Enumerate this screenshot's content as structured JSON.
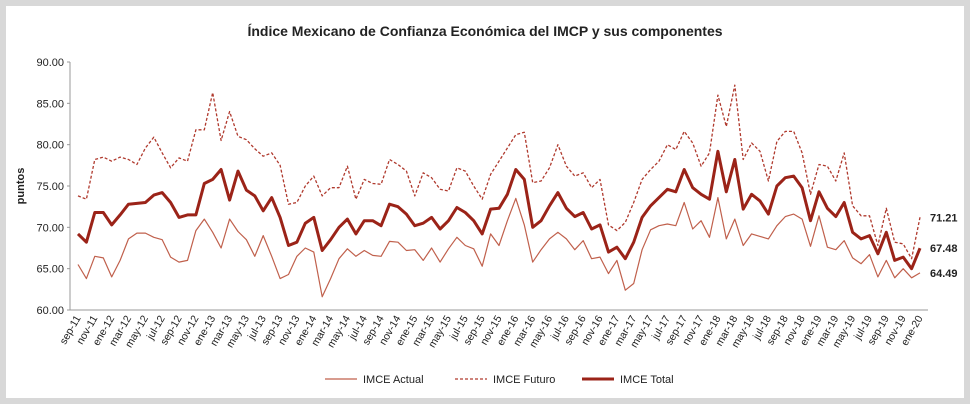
{
  "chart_data": {
    "type": "line",
    "title": "Índice Mexicano de Confianza Económica del IMCP y sus componentes",
    "ylabel": "puntos",
    "ylim": [
      60,
      90
    ],
    "yticks": [
      {
        "value": 60,
        "label": "60.00"
      },
      {
        "value": 65,
        "label": "65.00"
      },
      {
        "value": 70,
        "label": "70.00"
      },
      {
        "value": 75,
        "label": "75.00"
      },
      {
        "value": 80,
        "label": "80.00"
      },
      {
        "value": 85,
        "label": "85.00"
      },
      {
        "value": 90,
        "label": "90.00"
      }
    ],
    "grid": false,
    "legend": "bottom",
    "categories": [
      "sep-11",
      null,
      "nov-11",
      null,
      "ene-12",
      null,
      "mar-12",
      null,
      "may-12",
      null,
      "jul-12",
      null,
      "sep-12",
      null,
      "nov-12",
      null,
      "ene-13",
      null,
      "mar-13",
      null,
      "may-13",
      null,
      "jul-13",
      null,
      "sep-13",
      null,
      "nov-13",
      null,
      "ene-14",
      null,
      "mar-14",
      null,
      "may-14",
      null,
      "jul-14",
      null,
      "sep-14",
      null,
      "nov-14",
      null,
      "ene-15",
      null,
      "mar-15",
      null,
      "may-15",
      null,
      "jul-15",
      null,
      "sep-15",
      null,
      "nov-15",
      null,
      "ene-16",
      null,
      "mar-16",
      null,
      "may-16",
      null,
      "jul-16",
      null,
      "sep-16",
      null,
      "nov-16",
      null,
      "ene-17",
      null,
      "mar-17",
      null,
      "may-17",
      null,
      "jul-17",
      null,
      "sep-17",
      null,
      "nov-17",
      null,
      "ene-18",
      null,
      "mar-18",
      null,
      "may-18",
      null,
      "jul-18",
      null,
      "sep-18",
      null,
      "nov-18",
      null,
      "ene-19",
      null,
      "mar-19",
      null,
      "may-19",
      null,
      "jul-19",
      null,
      "sep-19",
      null,
      "nov-19",
      null,
      "ene-20"
    ],
    "series": [
      {
        "name": "IMCE Actual",
        "color": "#c0604c",
        "line_width": 1.2,
        "line_style": "solid",
        "values": [
          65.5,
          63.8,
          66.5,
          66.3,
          64.0,
          66.0,
          68.6,
          69.3,
          69.3,
          68.8,
          68.5,
          66.4,
          65.8,
          66.0,
          69.6,
          71.0,
          69.4,
          67.5,
          71.0,
          69.5,
          68.5,
          66.5,
          69.0,
          66.5,
          63.8,
          64.3,
          66.5,
          67.5,
          67.0,
          61.6,
          63.8,
          66.2,
          67.4,
          66.5,
          67.2,
          66.6,
          66.5,
          68.3,
          68.2,
          67.2,
          67.3,
          66.0,
          67.5,
          65.8,
          67.4,
          68.8,
          67.8,
          67.4,
          65.3,
          69.2,
          67.8,
          70.8,
          73.5,
          70.3,
          65.8,
          67.3,
          68.6,
          69.4,
          68.6,
          67.3,
          68.4,
          66.2,
          66.4,
          64.4,
          66.0,
          62.4,
          63.2,
          67.3,
          69.7,
          70.2,
          70.4,
          70.2,
          73.0,
          69.8,
          70.8,
          68.8,
          73.6,
          68.6,
          71.0,
          67.8,
          69.2,
          68.9,
          68.6,
          70.2,
          71.3,
          71.6,
          71.0,
          67.7,
          71.4,
          67.6,
          67.3,
          68.4,
          66.3,
          65.6,
          66.7,
          64.0,
          66.0,
          63.9,
          65.0,
          63.9,
          64.49
        ]
      },
      {
        "name": "IMCE Futuro",
        "color": "#b03a2e",
        "line_width": 1.3,
        "line_style": "dashed",
        "values": [
          73.8,
          73.4,
          78.2,
          78.5,
          78.0,
          78.5,
          78.2,
          77.6,
          79.6,
          80.9,
          79.0,
          77.2,
          78.4,
          78.0,
          81.8,
          81.8,
          86.3,
          80.5,
          84.0,
          81.0,
          80.6,
          79.5,
          78.6,
          79.0,
          77.5,
          72.8,
          73.0,
          75.0,
          76.2,
          73.8,
          74.8,
          74.8,
          77.4,
          73.4,
          75.8,
          75.3,
          75.2,
          78.2,
          77.6,
          76.8,
          73.8,
          76.6,
          76.0,
          74.6,
          74.4,
          77.2,
          76.8,
          75.0,
          73.4,
          76.4,
          78.0,
          79.6,
          81.2,
          81.5,
          75.4,
          75.6,
          77.2,
          80.0,
          77.4,
          76.2,
          76.6,
          74.8,
          75.8,
          70.3,
          69.6,
          70.6,
          73.0,
          75.8,
          77.0,
          78.0,
          80.0,
          79.4,
          81.6,
          80.2,
          77.4,
          79.0,
          86.0,
          82.2,
          87.2,
          78.2,
          80.2,
          79.2,
          75.6,
          80.4,
          81.6,
          81.6,
          79.0,
          74.0,
          77.6,
          77.4,
          75.6,
          79.0,
          72.6,
          71.4,
          71.4,
          67.8,
          72.3,
          68.2,
          68.0,
          66.2,
          71.21
        ]
      },
      {
        "name": "IMCE Total",
        "color": "#9b2318",
        "line_width": 3,
        "line_style": "solid",
        "values": [
          69.2,
          68.2,
          71.8,
          71.8,
          70.3,
          71.5,
          72.8,
          72.9,
          73.0,
          73.9,
          74.2,
          73.0,
          71.2,
          71.5,
          71.5,
          75.3,
          75.8,
          77.0,
          73.3,
          76.8,
          74.5,
          73.8,
          72.0,
          73.6,
          71.2,
          67.8,
          68.2,
          70.5,
          71.2,
          67.2,
          68.5,
          70.0,
          71.0,
          69.2,
          70.8,
          70.8,
          70.2,
          72.8,
          72.5,
          71.6,
          70.2,
          70.5,
          71.2,
          69.8,
          70.8,
          72.4,
          71.8,
          70.8,
          69.2,
          72.2,
          72.3,
          74.0,
          77.0,
          75.8,
          70.0,
          70.8,
          72.6,
          74.2,
          72.3,
          71.3,
          71.8,
          69.8,
          70.3,
          67.0,
          67.6,
          66.2,
          68.2,
          71.2,
          72.6,
          73.6,
          74.6,
          74.3,
          77.0,
          74.8,
          74.0,
          73.4,
          79.2,
          74.3,
          78.2,
          72.2,
          74.0,
          73.2,
          71.6,
          75.0,
          76.0,
          76.2,
          74.8,
          70.8,
          74.3,
          72.3,
          71.3,
          73.0,
          69.4,
          68.6,
          69.0,
          66.8,
          69.4,
          66.0,
          66.4,
          65.0,
          67.48
        ]
      }
    ]
  }
}
